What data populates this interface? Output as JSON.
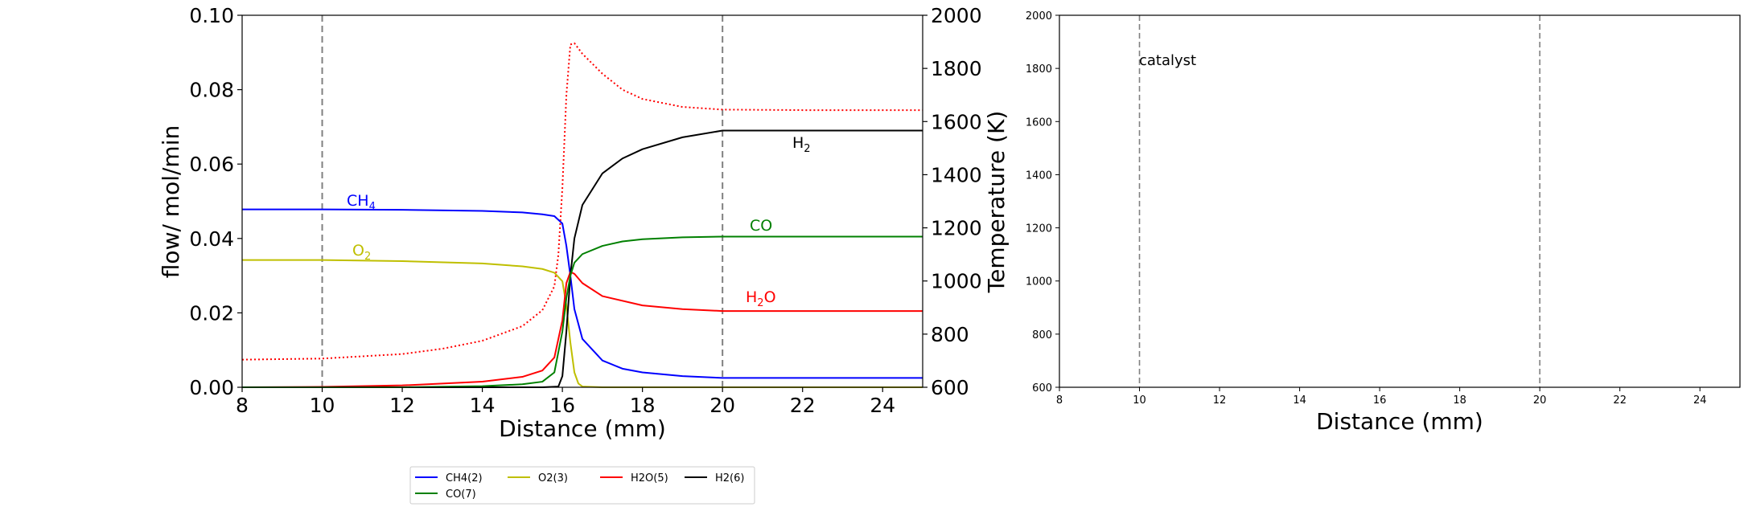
{
  "chart_data": [
    {
      "type": "line",
      "xlabel": "Distance (mm)",
      "ylabel": "flow/ mol/min",
      "y2label": "Temperature (K)",
      "xlim": [
        8,
        25
      ],
      "ylim": [
        0,
        0.1
      ],
      "y2lim": [
        600,
        2000
      ],
      "xticks": [
        "8",
        "10",
        "12",
        "14",
        "16",
        "18",
        "20",
        "22",
        "24"
      ],
      "yticks": [
        "0.00",
        "0.02",
        "0.04",
        "0.06",
        "0.08",
        "0.10"
      ],
      "y2ticks": [
        "600",
        "800",
        "1000",
        "1200",
        "1400",
        "1600",
        "1800",
        "2000"
      ],
      "vlines": [
        10,
        20
      ],
      "grid": false,
      "legend_position": "below",
      "series": [
        {
          "name": "CH4(2)",
          "color": "#0000ff",
          "label_parts": [
            "CH",
            "4",
            ""
          ],
          "x": [
            8,
            10,
            12,
            14,
            15,
            15.5,
            15.8,
            16.0,
            16.1,
            16.2,
            16.3,
            16.5,
            17,
            17.5,
            18,
            19,
            20,
            22,
            25
          ],
          "y": [
            0.0478,
            0.0478,
            0.0477,
            0.0474,
            0.047,
            0.0465,
            0.046,
            0.044,
            0.038,
            0.03,
            0.021,
            0.013,
            0.0072,
            0.005,
            0.004,
            0.003,
            0.0025,
            0.0025,
            0.0025
          ]
        },
        {
          "name": "O2(3)",
          "color": "#bfbf00",
          "label_parts": [
            "O",
            "2",
            ""
          ],
          "x": [
            8,
            10,
            12,
            14,
            15,
            15.5,
            15.8,
            16.0,
            16.1,
            16.2,
            16.3,
            16.4,
            16.5,
            17,
            25
          ],
          "y": [
            0.0342,
            0.0342,
            0.0339,
            0.0333,
            0.0325,
            0.0318,
            0.0308,
            0.0285,
            0.022,
            0.012,
            0.004,
            0.001,
            0.0002,
            0,
            0
          ]
        },
        {
          "name": "H2O(5)",
          "color": "#ff0000",
          "label_parts": [
            "H",
            "2",
            "O"
          ],
          "x": [
            8,
            10,
            12,
            14,
            15,
            15.5,
            15.8,
            16.0,
            16.1,
            16.2,
            16.3,
            16.5,
            17,
            18,
            19,
            20,
            25
          ],
          "y": [
            0,
            0.0001,
            0.0005,
            0.0015,
            0.0028,
            0.0045,
            0.008,
            0.018,
            0.028,
            0.031,
            0.0305,
            0.028,
            0.0245,
            0.022,
            0.021,
            0.0205,
            0.0205
          ]
        },
        {
          "name": "H2(6)",
          "color": "#000000",
          "label_parts": [
            "H",
            "2",
            ""
          ],
          "x": [
            8,
            15.5,
            15.9,
            16.0,
            16.1,
            16.2,
            16.3,
            16.5,
            17,
            17.5,
            18,
            19,
            20,
            25
          ],
          "y": [
            0,
            0,
            0.0002,
            0.003,
            0.015,
            0.03,
            0.04,
            0.049,
            0.0575,
            0.0615,
            0.064,
            0.0672,
            0.069,
            0.069
          ]
        },
        {
          "name": "CO(7)",
          "color": "#008000",
          "label_parts": [
            "CO",
            "",
            ""
          ],
          "x": [
            8,
            12,
            14,
            15,
            15.5,
            15.8,
            16.0,
            16.1,
            16.2,
            16.3,
            16.5,
            17,
            17.5,
            18,
            19,
            20,
            25
          ],
          "y": [
            0,
            0,
            0.0003,
            0.0008,
            0.0015,
            0.004,
            0.015,
            0.024,
            0.03,
            0.0335,
            0.0358,
            0.038,
            0.0392,
            0.0398,
            0.0403,
            0.0405,
            0.0405
          ]
        }
      ],
      "temperature_series": {
        "color": "#ff0000",
        "style": "dotted",
        "axis": "right",
        "x": [
          8,
          10,
          12,
          13,
          14,
          15,
          15.5,
          15.8,
          15.9,
          16.0,
          16.1,
          16.2,
          16.3,
          16.5,
          17,
          17.5,
          18,
          19,
          20,
          22,
          25
        ],
        "y": [
          704,
          708,
          725,
          745,
          775,
          830,
          890,
          980,
          1100,
          1350,
          1700,
          1890,
          1895,
          1855,
          1780,
          1720,
          1685,
          1655,
          1645,
          1643,
          1643
        ]
      }
    },
    {
      "type": "line",
      "xlabel": "Distance (mm)",
      "ylabel": "",
      "xlim": [
        8,
        25
      ],
      "ylim": [
        600,
        2000
      ],
      "xticks": [
        "8",
        "10",
        "12",
        "14",
        "16",
        "18",
        "20",
        "22",
        "24"
      ],
      "yticks": [
        "600",
        "800",
        "1000",
        "1200",
        "1400",
        "1600",
        "1800",
        "2000"
      ],
      "vlines": [
        10,
        20
      ],
      "annotation": "catalyst",
      "series": []
    }
  ]
}
